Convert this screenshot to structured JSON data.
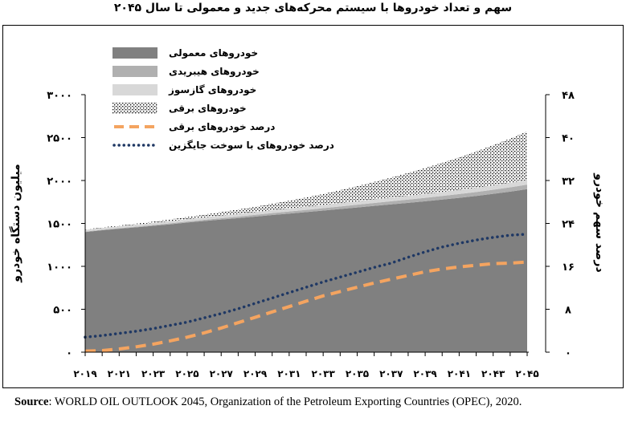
{
  "title": "سهم و تعداد خودروها با سیستم محرکه‌های جدید و معمولی تا سال ۲۰۴۵",
  "source": {
    "label": "Source",
    "text": ": WORLD OIL OUTLOOK 2045, Organization of the Petroleum Exporting Countries (OPEC), 2020."
  },
  "chart_data": {
    "type": "area",
    "x": [
      2019,
      2020,
      2021,
      2022,
      2023,
      2024,
      2025,
      2026,
      2027,
      2028,
      2029,
      2030,
      2031,
      2032,
      2033,
      2034,
      2035,
      2036,
      2037,
      2038,
      2039,
      2040,
      2041,
      2042,
      2043,
      2044,
      2045
    ],
    "xticklabels": [
      "۲۰۱۹",
      "۲۰۲۱",
      "۲۰۲۳",
      "۲۰۲۵",
      "۲۰۲۷",
      "۲۰۲۹",
      "۲۰۳۱",
      "۲۰۳۳",
      "۲۰۳۵",
      "۲۰۳۷",
      "۲۰۳۹",
      "۲۰۴۱",
      "۲۰۴۳",
      "۲۰۴۵"
    ],
    "ylabel": "میلیون دستگاه خودرو",
    "y2label": "درصد سهم خودرو",
    "ylim": [
      0,
      3000
    ],
    "y2lim": [
      0,
      48
    ],
    "yticks": [
      0,
      500,
      1000,
      1500,
      2000,
      2500,
      3000
    ],
    "yticklabels": [
      "۰",
      "۵۰۰",
      "۱۰۰۰",
      "۱۵۰۰",
      "۲۰۰۰",
      "۲۵۰۰",
      "۳۰۰۰"
    ],
    "y2ticks": [
      0,
      8,
      16,
      24,
      32,
      40,
      48
    ],
    "y2ticklabels": [
      "۰",
      "۸",
      "۱۶",
      "۲۴",
      "۳۲",
      "۴۰",
      "۴۸"
    ],
    "legend_position": "top-left",
    "series": [
      {
        "name": "خودروهای معمولی",
        "kind": "area",
        "axis": "left",
        "color": "#808080",
        "values": [
          1400,
          1420,
          1438,
          1455,
          1472,
          1490,
          1510,
          1528,
          1545,
          1562,
          1580,
          1598,
          1615,
          1632,
          1650,
          1668,
          1686,
          1704,
          1722,
          1740,
          1758,
          1778,
          1798,
          1820,
          1845,
          1870,
          1900
        ]
      },
      {
        "name": "خودروهای هیبریدی",
        "kind": "area",
        "axis": "left",
        "color": "#b0b0b0",
        "values": [
          5,
          6,
          7,
          8,
          9,
          11,
          12,
          14,
          16,
          18,
          20,
          22,
          24,
          26,
          28,
          30,
          32,
          34,
          36,
          38,
          40,
          42,
          44,
          46,
          48,
          50,
          52
        ]
      },
      {
        "name": "خودروهای گازسوز",
        "kind": "area",
        "axis": "left",
        "color": "#d8d8d8",
        "values": [
          20,
          21,
          22,
          23,
          24,
          26,
          27,
          28,
          30,
          31,
          32,
          34,
          35,
          36,
          38,
          39,
          40,
          42,
          43,
          44,
          46,
          47,
          48,
          50,
          51,
          53,
          55
        ]
      },
      {
        "name": "خودروهای برقی",
        "kind": "area",
        "axis": "left",
        "color": "#000000",
        "values": [
          5,
          7,
          9,
          12,
          16,
          20,
          26,
          33,
          41,
          51,
          62,
          76,
          91,
          109,
          128,
          151,
          176,
          204,
          234,
          267,
          302,
          340,
          380,
          423,
          468,
          515,
          565
        ]
      },
      {
        "name": "درصد خودروهای برقی",
        "kind": "line",
        "axis": "right",
        "color": "#f4a460",
        "values": [
          0.2,
          0.3,
          0.6,
          1.0,
          1.5,
          2.1,
          2.8,
          3.6,
          4.5,
          5.5,
          6.5,
          7.5,
          8.5,
          9.5,
          10.5,
          11.3,
          12.1,
          12.9,
          13.6,
          14.3,
          15.0,
          15.5,
          15.9,
          16.2,
          16.5,
          16.6,
          16.8
        ]
      },
      {
        "name": "درصد خودروهای با سوخت جایگزین",
        "kind": "line",
        "axis": "right",
        "color": "#1f3864",
        "values": [
          2.8,
          3.1,
          3.5,
          3.9,
          4.4,
          5.0,
          5.6,
          6.4,
          7.2,
          8.1,
          9.1,
          10.1,
          11.1,
          12.1,
          13.1,
          14.0,
          14.9,
          15.8,
          16.6,
          17.7,
          18.7,
          19.6,
          20.3,
          20.9,
          21.4,
          21.8,
          22.0
        ]
      }
    ]
  }
}
